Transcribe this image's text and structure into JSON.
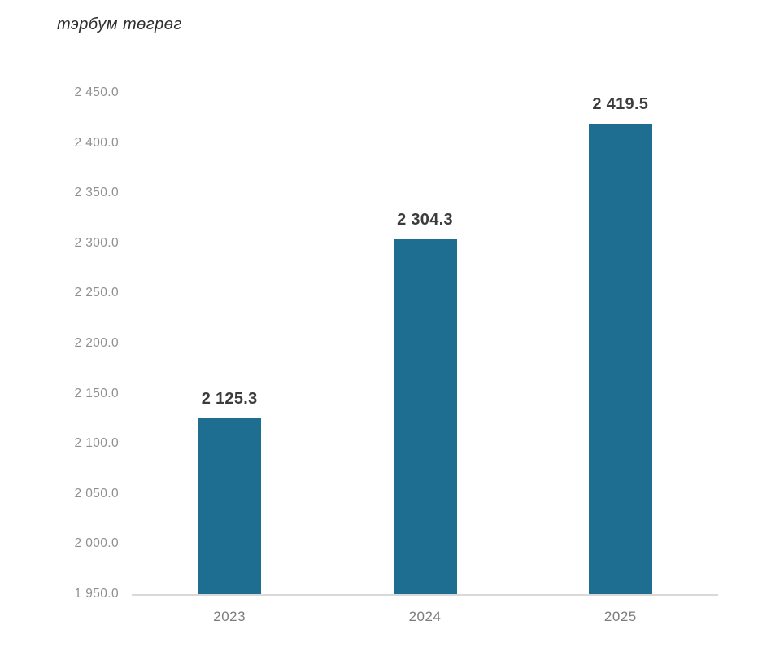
{
  "chart_data": {
    "type": "bar",
    "title": "тэрбум төгрөг",
    "categories": [
      "2023",
      "2024",
      "2025"
    ],
    "values": [
      2125.3,
      2304.3,
      2419.5
    ],
    "value_labels": [
      "2 125.3",
      "2 304.3",
      "2 419.5"
    ],
    "xlabel": "",
    "ylabel": "",
    "ylim": [
      1950,
      2450
    ],
    "y_tick_step": 50,
    "y_ticks": [
      {
        "value": 2450,
        "label": "2 450.0"
      },
      {
        "value": 2400,
        "label": "2 400.0"
      },
      {
        "value": 2350,
        "label": "2 350.0"
      },
      {
        "value": 2300,
        "label": "2 300.0"
      },
      {
        "value": 2250,
        "label": "2 250.0"
      },
      {
        "value": 2200,
        "label": "2 200.0"
      },
      {
        "value": 2150,
        "label": "2 150.0"
      },
      {
        "value": 2100,
        "label": "2 100.0"
      },
      {
        "value": 2050,
        "label": "2 050.0"
      },
      {
        "value": 2000,
        "label": "2 000.0"
      },
      {
        "value": 1950,
        "label": "1 950.0"
      }
    ],
    "grid": false,
    "legend": false,
    "colors": {
      "bar": "#1d6e90",
      "value_label": "#3c3c3c",
      "y_tick_label": "#8f8f8f",
      "x_tick_label": "#7c7c7c",
      "axis_line": "#d9d9d9",
      "title": "#2e2e2e",
      "background": "#ffffff"
    }
  }
}
